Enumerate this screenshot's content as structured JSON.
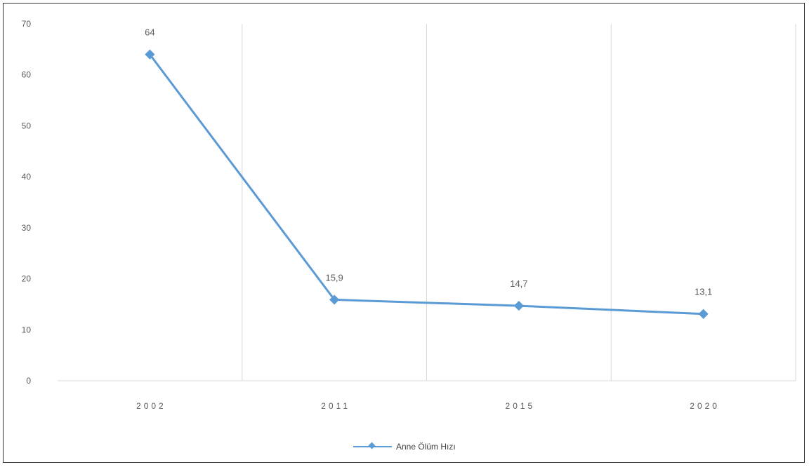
{
  "chart_data": {
    "type": "line",
    "categories": [
      "2002",
      "2011",
      "2015",
      "2020"
    ],
    "series": [
      {
        "name": "Anne Ölüm Hızı",
        "values": [
          64,
          15.9,
          14.7,
          13.1
        ],
        "data_labels": [
          "64",
          "15,9",
          "14,7",
          "13,1"
        ],
        "color": "#5B9BD5"
      }
    ],
    "ylim": [
      0,
      70
    ],
    "yticks": [
      "0",
      "10",
      "20",
      "30",
      "40",
      "50",
      "60",
      "70"
    ],
    "grid": "vertical",
    "legend": "bottom"
  }
}
